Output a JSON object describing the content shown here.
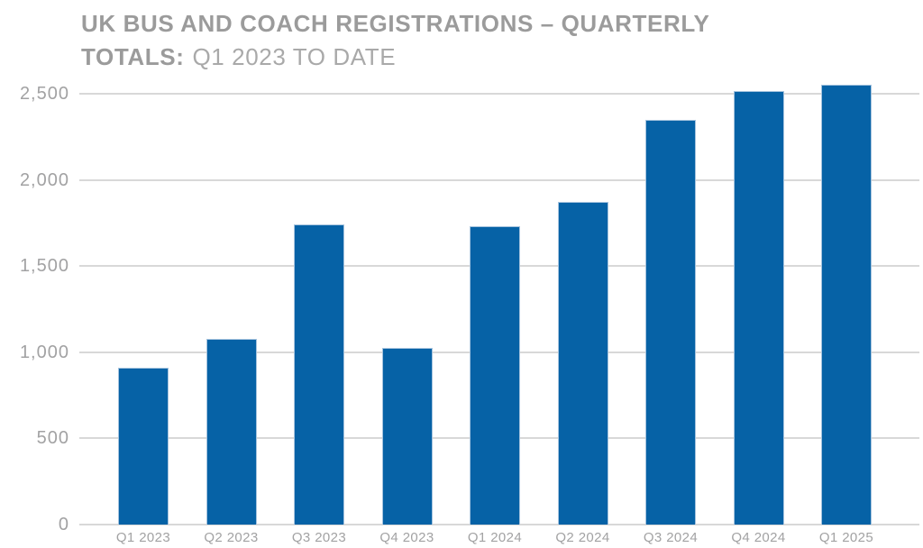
{
  "title": {
    "line1": "UK BUS AND COACH REGISTRATIONS – QUARTERLY",
    "line2_bold": "TOTALS:",
    "line2_regular": "Q1 2023 TO DATE"
  },
  "chart_data": {
    "type": "bar",
    "title": "UK BUS AND COACH REGISTRATIONS – QUARTERLY TOTALS: Q1 2023 TO DATE",
    "categories": [
      "Q1 2023",
      "Q2 2023",
      "Q3 2023",
      "Q4 2023",
      "Q1 2024",
      "Q2 2024",
      "Q3 2024",
      "Q4 2024",
      "Q1 2025"
    ],
    "values": [
      910,
      1080,
      1740,
      1025,
      1730,
      1870,
      2350,
      2515,
      2550
    ],
    "xlabel": "",
    "ylabel": "",
    "ylim": [
      0,
      2600
    ],
    "yticks": [
      0,
      500,
      1000,
      1500,
      2000,
      2500
    ],
    "ytick_labels": [
      "0",
      "500",
      "1,000",
      "1,500",
      "2,000",
      "2,500"
    ],
    "grid": true,
    "legend": false,
    "style": {
      "bar_color": "#0662a6",
      "bar_edge_color": "#a5c3de",
      "gridline_color": "#d8d8d8",
      "tick_label_color": "#a2a2a3",
      "title_bold_color": "#9b9b9b",
      "title_regular_color": "#a9a9a9",
      "background_color": "#ffffff"
    }
  }
}
